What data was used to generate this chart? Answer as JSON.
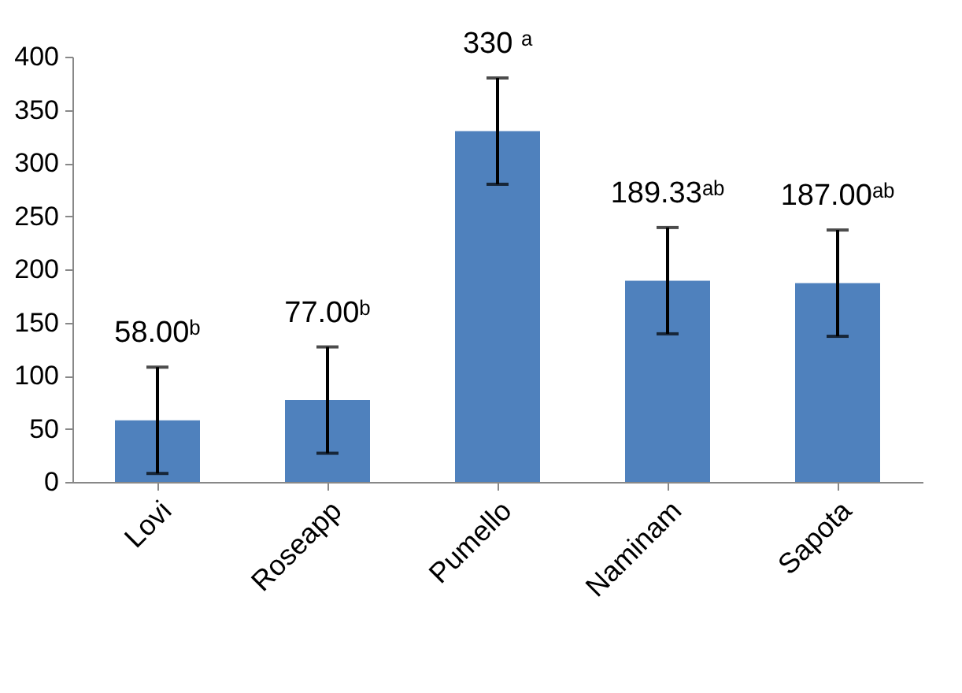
{
  "chart_data": {
    "type": "bar",
    "categories": [
      "Lovi",
      "Roseapp",
      "Pumello",
      "Naminam",
      "Sapota"
    ],
    "values": [
      58.0,
      77.0,
      330,
      189.33,
      187.0
    ],
    "errors": [
      50,
      50,
      50,
      50,
      50
    ],
    "value_labels": [
      "58.00ᵇ",
      "77.00ᵇ",
      "330 ᵃ",
      "189.33ᵃᵇ",
      "187.00ᵃᵇ"
    ],
    "color": "#4f81bd",
    "ylim": [
      0,
      400
    ],
    "yticks": [
      0,
      50,
      100,
      150,
      200,
      250,
      300,
      350,
      400
    ],
    "grid": false
  }
}
